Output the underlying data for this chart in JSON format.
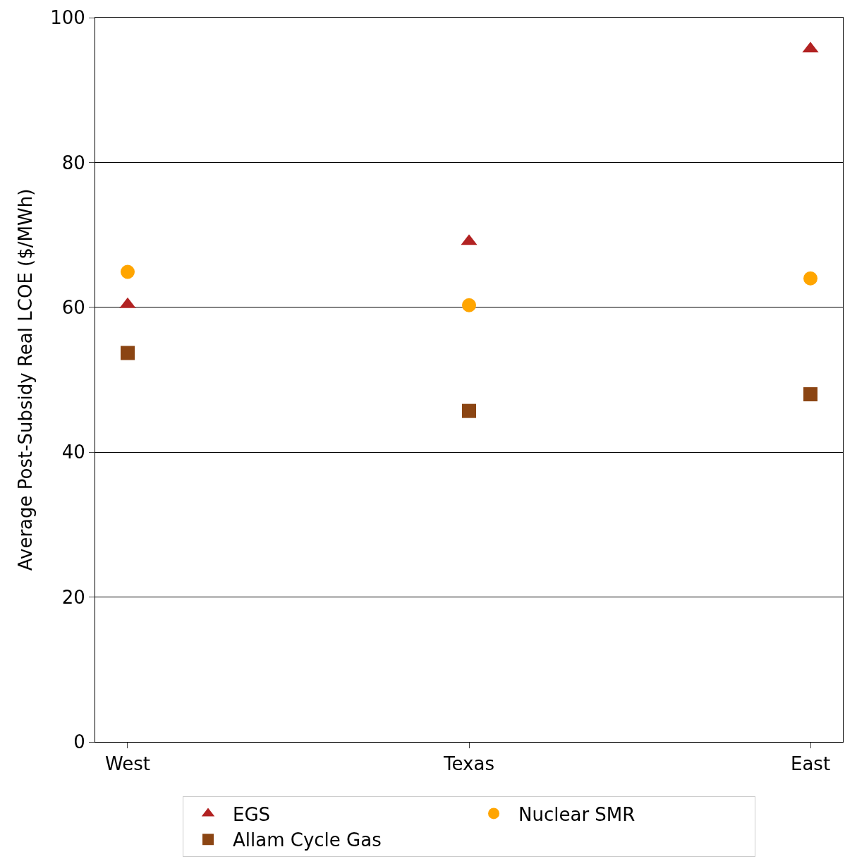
{
  "chart_data": {
    "type": "scatter",
    "ylabel": "Average Post-Subsidy Real LCOE ($/MWh)",
    "categories": [
      "West",
      "Texas",
      "East"
    ],
    "series": [
      {
        "name": "EGS",
        "color": "#b22222",
        "marker": "triangle",
        "values": [
          60.4,
          69.1,
          95.7
        ]
      },
      {
        "name": "Nuclear SMR",
        "color": "#ffa500",
        "marker": "circle",
        "values": [
          64.9,
          60.3,
          64.0
        ]
      },
      {
        "name": "Allam Cycle Gas",
        "color": "#8b4513",
        "marker": "square",
        "values": [
          53.7,
          45.7,
          48.0
        ]
      }
    ],
    "ylim": [
      0,
      100
    ],
    "yticks": [
      0,
      20,
      40,
      60,
      80,
      100
    ],
    "grid": "y",
    "legend": "bottom"
  }
}
